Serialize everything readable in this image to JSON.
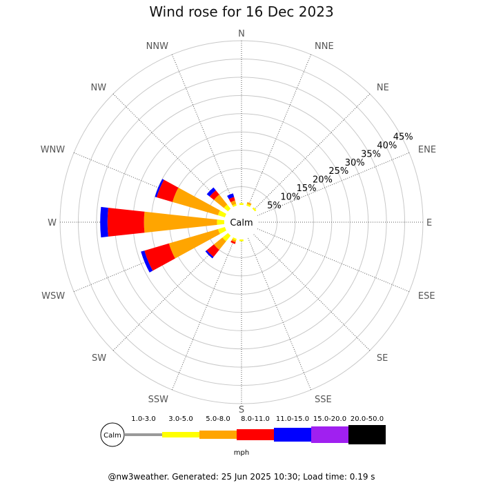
{
  "chart_data": {
    "type": "windrose",
    "title": "Wind rose for 16 Dec 2023",
    "directions": [
      "N",
      "NNE",
      "NE",
      "ENE",
      "E",
      "ESE",
      "SE",
      "SSE",
      "S",
      "SSW",
      "SW",
      "WSW",
      "W",
      "WNW",
      "NW",
      "NNW"
    ],
    "rings_percent": [
      5,
      10,
      15,
      20,
      25,
      30,
      35,
      40,
      45
    ],
    "ring_labels": [
      "5%",
      "10%",
      "15%",
      "20%",
      "25%",
      "30%",
      "35%",
      "40%",
      "45%"
    ],
    "calm_label": "Calm",
    "speed_bins": [
      {
        "label": "1.0-3.0",
        "color": "#999999"
      },
      {
        "label": "3.0-5.0",
        "color": "#ffff00"
      },
      {
        "label": "5.0-8.0",
        "color": "#ffa500"
      },
      {
        "label": "8.0-11.0",
        "color": "#ff0000"
      },
      {
        "label": "11.0-15.0",
        "color": "#0000ff"
      },
      {
        "label": "15.0-20.0",
        "color": "#a020f0"
      },
      {
        "label": "20.0-50.0",
        "color": "#000000"
      }
    ],
    "units": "mph",
    "cumulative_percent": {
      "N": [
        0,
        0.5,
        0,
        0,
        0,
        0,
        0
      ],
      "NNE": [
        0,
        0.5,
        1.0,
        0,
        0,
        0,
        0
      ],
      "NE": [
        0,
        0.5,
        0,
        0,
        0,
        0,
        0
      ],
      "ENE": [
        0,
        0,
        0,
        0,
        0,
        0,
        0
      ],
      "E": [
        0,
        0,
        0,
        0,
        0,
        0,
        0
      ],
      "ESE": [
        0,
        0,
        0,
        0,
        0,
        0,
        0
      ],
      "SE": [
        0,
        0,
        0,
        0,
        0,
        0,
        0
      ],
      "SSE": [
        0,
        0,
        0,
        0,
        0,
        0,
        0
      ],
      "S": [
        0,
        0.5,
        0,
        0,
        0,
        0,
        0
      ],
      "SSW": [
        0,
        0.5,
        1.0,
        1.5,
        0,
        0,
        0
      ],
      "SW": [
        0,
        2.0,
        5.0,
        7.5,
        8.0,
        0,
        0
      ],
      "WSW": [
        0,
        2.0,
        16.0,
        23.0,
        24.0,
        0,
        0
      ],
      "W": [
        0,
        2.0,
        22.0,
        32.0,
        34.0,
        0,
        0
      ],
      "WNW": [
        0,
        2.0,
        15.0,
        19.5,
        20.0,
        0,
        0
      ],
      "NW": [
        0,
        1.5,
        5.0,
        6.5,
        7.5,
        0,
        0
      ],
      "NNW": [
        0,
        0.5,
        1.5,
        2.5,
        3.5,
        0,
        0
      ]
    }
  },
  "footer": "@nw3weather. Generated: 25 Jun 2025 10:30; Load time: 0.19 s"
}
